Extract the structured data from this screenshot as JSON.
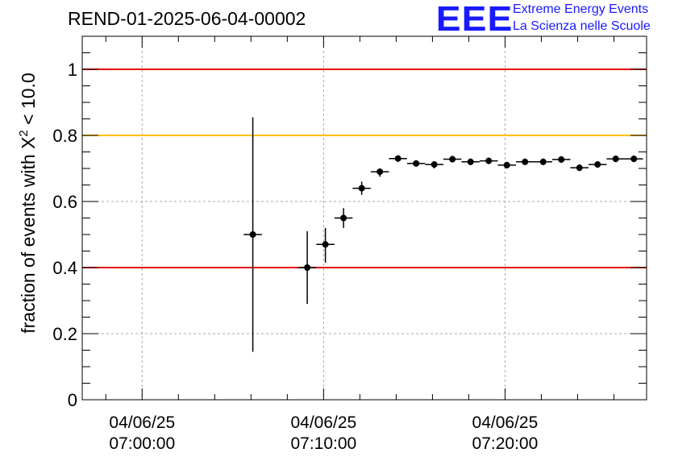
{
  "header": {
    "title": "REND-01-2025-06-04-00002",
    "logo_text": "EEE",
    "logo_line1": "Extreme Energy Events",
    "logo_line2": "La Scienza nelle Scuole"
  },
  "chart_data": {
    "type": "scatter",
    "title": "REND-01-2025-06-04-00002",
    "ylabel": "fraction of events with χ² < 10.0",
    "ylabel_pre": "fraction of events with X",
    "ylabel_sup": "2",
    "ylabel_post": " < 10.0",
    "xlabel": "",
    "ylim": [
      0,
      1.1
    ],
    "xlim_minutes": [
      -3.3,
      27.8
    ],
    "grid": true,
    "x_ticks": [
      {
        "minute": 0,
        "date": "04/06/25",
        "time": "07:00:00"
      },
      {
        "minute": 10,
        "date": "04/06/25",
        "time": "07:10:00"
      },
      {
        "minute": 20,
        "date": "04/06/25",
        "time": "07:20:00"
      }
    ],
    "y_ticks": [
      0,
      0.2,
      0.4,
      0.6,
      0.8,
      1
    ],
    "y_tick_labels": [
      "0",
      "0.2",
      "0.4",
      "0.6",
      "0.8",
      "1"
    ],
    "reference_lines": [
      {
        "y": 1.0,
        "color": "#e8000b"
      },
      {
        "y": 0.8,
        "color": "#ffc000"
      },
      {
        "y": 0.4,
        "color": "#e8000b"
      }
    ],
    "points": [
      {
        "x": 6.1,
        "y": 0.5,
        "ylow": 0.145,
        "yhigh": 0.855
      },
      {
        "x": 9.1,
        "y": 0.4,
        "ylow": 0.29,
        "yhigh": 0.51
      },
      {
        "x": 10.1,
        "y": 0.47,
        "ylow": 0.415,
        "yhigh": 0.52
      },
      {
        "x": 11.1,
        "y": 0.55,
        "ylow": 0.52,
        "yhigh": 0.58
      },
      {
        "x": 12.1,
        "y": 0.64,
        "ylow": 0.62,
        "yhigh": 0.66
      },
      {
        "x": 13.1,
        "y": 0.69,
        "ylow": 0.675,
        "yhigh": 0.7
      },
      {
        "x": 14.1,
        "y": 0.73,
        "ylow": 0.72,
        "yhigh": 0.74
      },
      {
        "x": 15.1,
        "y": 0.715,
        "ylow": 0.705,
        "yhigh": 0.725
      },
      {
        "x": 16.1,
        "y": 0.712,
        "ylow": 0.7,
        "yhigh": 0.722
      },
      {
        "x": 17.1,
        "y": 0.728,
        "ylow": 0.718,
        "yhigh": 0.738
      },
      {
        "x": 18.1,
        "y": 0.72,
        "ylow": 0.71,
        "yhigh": 0.73
      },
      {
        "x": 19.1,
        "y": 0.723,
        "ylow": 0.713,
        "yhigh": 0.733
      },
      {
        "x": 20.1,
        "y": 0.71,
        "ylow": 0.7,
        "yhigh": 0.72
      },
      {
        "x": 21.1,
        "y": 0.72,
        "ylow": 0.71,
        "yhigh": 0.73
      },
      {
        "x": 22.1,
        "y": 0.72,
        "ylow": 0.71,
        "yhigh": 0.73
      },
      {
        "x": 23.1,
        "y": 0.727,
        "ylow": 0.717,
        "yhigh": 0.737
      },
      {
        "x": 24.1,
        "y": 0.702,
        "ylow": 0.692,
        "yhigh": 0.712
      },
      {
        "x": 25.1,
        "y": 0.712,
        "ylow": 0.702,
        "yhigh": 0.722
      },
      {
        "x": 26.1,
        "y": 0.729,
        "ylow": 0.719,
        "yhigh": 0.739
      },
      {
        "x": 27.1,
        "y": 0.729,
        "ylow": 0.719,
        "yhigh": 0.739
      }
    ],
    "x_bin_halfwidth": 0.5
  }
}
